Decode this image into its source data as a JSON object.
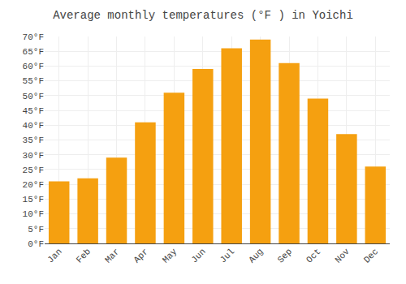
{
  "chart_data": {
    "type": "bar",
    "title": "Average monthly temperatures (°F ) in Yoichi",
    "categories": [
      "Jan",
      "Feb",
      "Mar",
      "Apr",
      "May",
      "Jun",
      "Jul",
      "Aug",
      "Sep",
      "Oct",
      "Nov",
      "Dec"
    ],
    "values": [
      21,
      22,
      29,
      41,
      51,
      59,
      66,
      69,
      61,
      49,
      37,
      26
    ],
    "color": "#F5A010",
    "ylim": [
      0,
      70
    ],
    "yticks": [
      {
        "value": 0,
        "label": "0°F"
      },
      {
        "value": 5,
        "label": "5°F"
      },
      {
        "value": 10,
        "label": "10°F"
      },
      {
        "value": 15,
        "label": "15°F"
      },
      {
        "value": 20,
        "label": "20°F"
      },
      {
        "value": 25,
        "label": "25°F"
      },
      {
        "value": 30,
        "label": "30°F"
      },
      {
        "value": 35,
        "label": "35°F"
      },
      {
        "value": 40,
        "label": "40°F"
      },
      {
        "value": 45,
        "label": "45°F"
      },
      {
        "value": 50,
        "label": "50°F"
      },
      {
        "value": 55,
        "label": "55°F"
      },
      {
        "value": 60,
        "label": "60°F"
      },
      {
        "value": 65,
        "label": "65°F"
      },
      {
        "value": 70,
        "label": "70°F"
      }
    ],
    "grid": true
  }
}
